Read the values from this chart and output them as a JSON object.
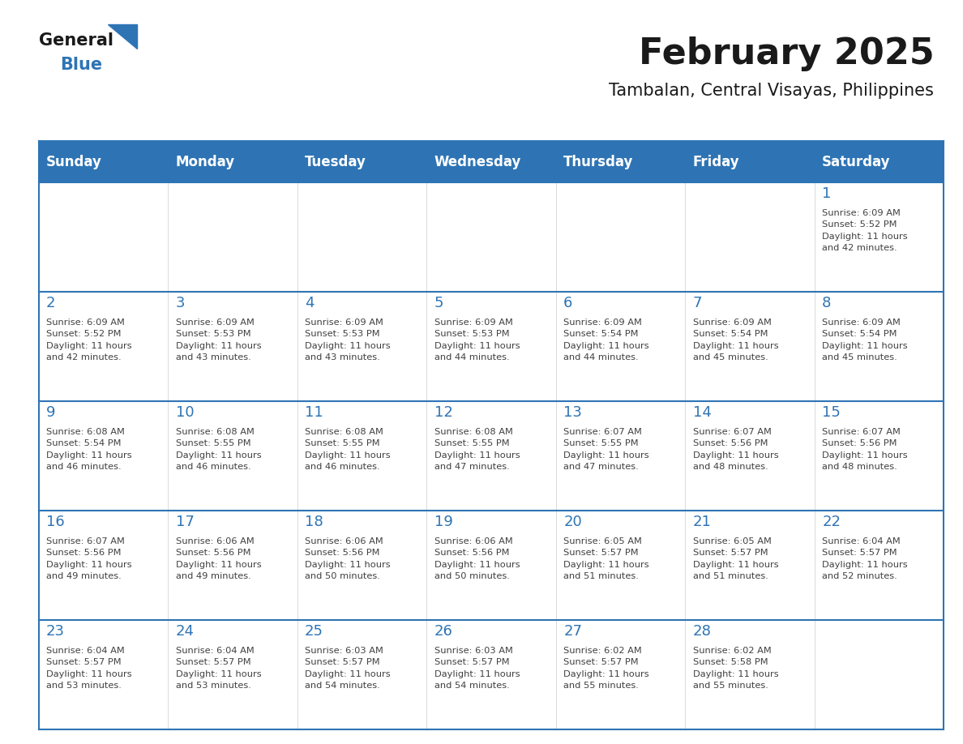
{
  "title": "February 2025",
  "subtitle": "Tambalan, Central Visayas, Philippines",
  "days_of_week": [
    "Sunday",
    "Monday",
    "Tuesday",
    "Wednesday",
    "Thursday",
    "Friday",
    "Saturday"
  ],
  "header_bg": "#2E74B5",
  "header_text": "#FFFFFF",
  "row_bg_light": "#FFFFFF",
  "cell_border": "#2E74B5",
  "day_num_color": "#2E74B5",
  "info_text_color": "#404040",
  "title_color": "#1a1a1a",
  "calendar_data": [
    [
      null,
      null,
      null,
      null,
      null,
      null,
      1
    ],
    [
      2,
      3,
      4,
      5,
      6,
      7,
      8
    ],
    [
      9,
      10,
      11,
      12,
      13,
      14,
      15
    ],
    [
      16,
      17,
      18,
      19,
      20,
      21,
      22
    ],
    [
      23,
      24,
      25,
      26,
      27,
      28,
      null
    ]
  ],
  "sunrise_data": {
    "1": "Sunrise: 6:09 AM\nSunset: 5:52 PM\nDaylight: 11 hours\nand 42 minutes.",
    "2": "Sunrise: 6:09 AM\nSunset: 5:52 PM\nDaylight: 11 hours\nand 42 minutes.",
    "3": "Sunrise: 6:09 AM\nSunset: 5:53 PM\nDaylight: 11 hours\nand 43 minutes.",
    "4": "Sunrise: 6:09 AM\nSunset: 5:53 PM\nDaylight: 11 hours\nand 43 minutes.",
    "5": "Sunrise: 6:09 AM\nSunset: 5:53 PM\nDaylight: 11 hours\nand 44 minutes.",
    "6": "Sunrise: 6:09 AM\nSunset: 5:54 PM\nDaylight: 11 hours\nand 44 minutes.",
    "7": "Sunrise: 6:09 AM\nSunset: 5:54 PM\nDaylight: 11 hours\nand 45 minutes.",
    "8": "Sunrise: 6:09 AM\nSunset: 5:54 PM\nDaylight: 11 hours\nand 45 minutes.",
    "9": "Sunrise: 6:08 AM\nSunset: 5:54 PM\nDaylight: 11 hours\nand 46 minutes.",
    "10": "Sunrise: 6:08 AM\nSunset: 5:55 PM\nDaylight: 11 hours\nand 46 minutes.",
    "11": "Sunrise: 6:08 AM\nSunset: 5:55 PM\nDaylight: 11 hours\nand 46 minutes.",
    "12": "Sunrise: 6:08 AM\nSunset: 5:55 PM\nDaylight: 11 hours\nand 47 minutes.",
    "13": "Sunrise: 6:07 AM\nSunset: 5:55 PM\nDaylight: 11 hours\nand 47 minutes.",
    "14": "Sunrise: 6:07 AM\nSunset: 5:56 PM\nDaylight: 11 hours\nand 48 minutes.",
    "15": "Sunrise: 6:07 AM\nSunset: 5:56 PM\nDaylight: 11 hours\nand 48 minutes.",
    "16": "Sunrise: 6:07 AM\nSunset: 5:56 PM\nDaylight: 11 hours\nand 49 minutes.",
    "17": "Sunrise: 6:06 AM\nSunset: 5:56 PM\nDaylight: 11 hours\nand 49 minutes.",
    "18": "Sunrise: 6:06 AM\nSunset: 5:56 PM\nDaylight: 11 hours\nand 50 minutes.",
    "19": "Sunrise: 6:06 AM\nSunset: 5:56 PM\nDaylight: 11 hours\nand 50 minutes.",
    "20": "Sunrise: 6:05 AM\nSunset: 5:57 PM\nDaylight: 11 hours\nand 51 minutes.",
    "21": "Sunrise: 6:05 AM\nSunset: 5:57 PM\nDaylight: 11 hours\nand 51 minutes.",
    "22": "Sunrise: 6:04 AM\nSunset: 5:57 PM\nDaylight: 11 hours\nand 52 minutes.",
    "23": "Sunrise: 6:04 AM\nSunset: 5:57 PM\nDaylight: 11 hours\nand 53 minutes.",
    "24": "Sunrise: 6:04 AM\nSunset: 5:57 PM\nDaylight: 11 hours\nand 53 minutes.",
    "25": "Sunrise: 6:03 AM\nSunset: 5:57 PM\nDaylight: 11 hours\nand 54 minutes.",
    "26": "Sunrise: 6:03 AM\nSunset: 5:57 PM\nDaylight: 11 hours\nand 54 minutes.",
    "27": "Sunrise: 6:02 AM\nSunset: 5:57 PM\nDaylight: 11 hours\nand 55 minutes.",
    "28": "Sunrise: 6:02 AM\nSunset: 5:58 PM\nDaylight: 11 hours\nand 55 minutes."
  }
}
